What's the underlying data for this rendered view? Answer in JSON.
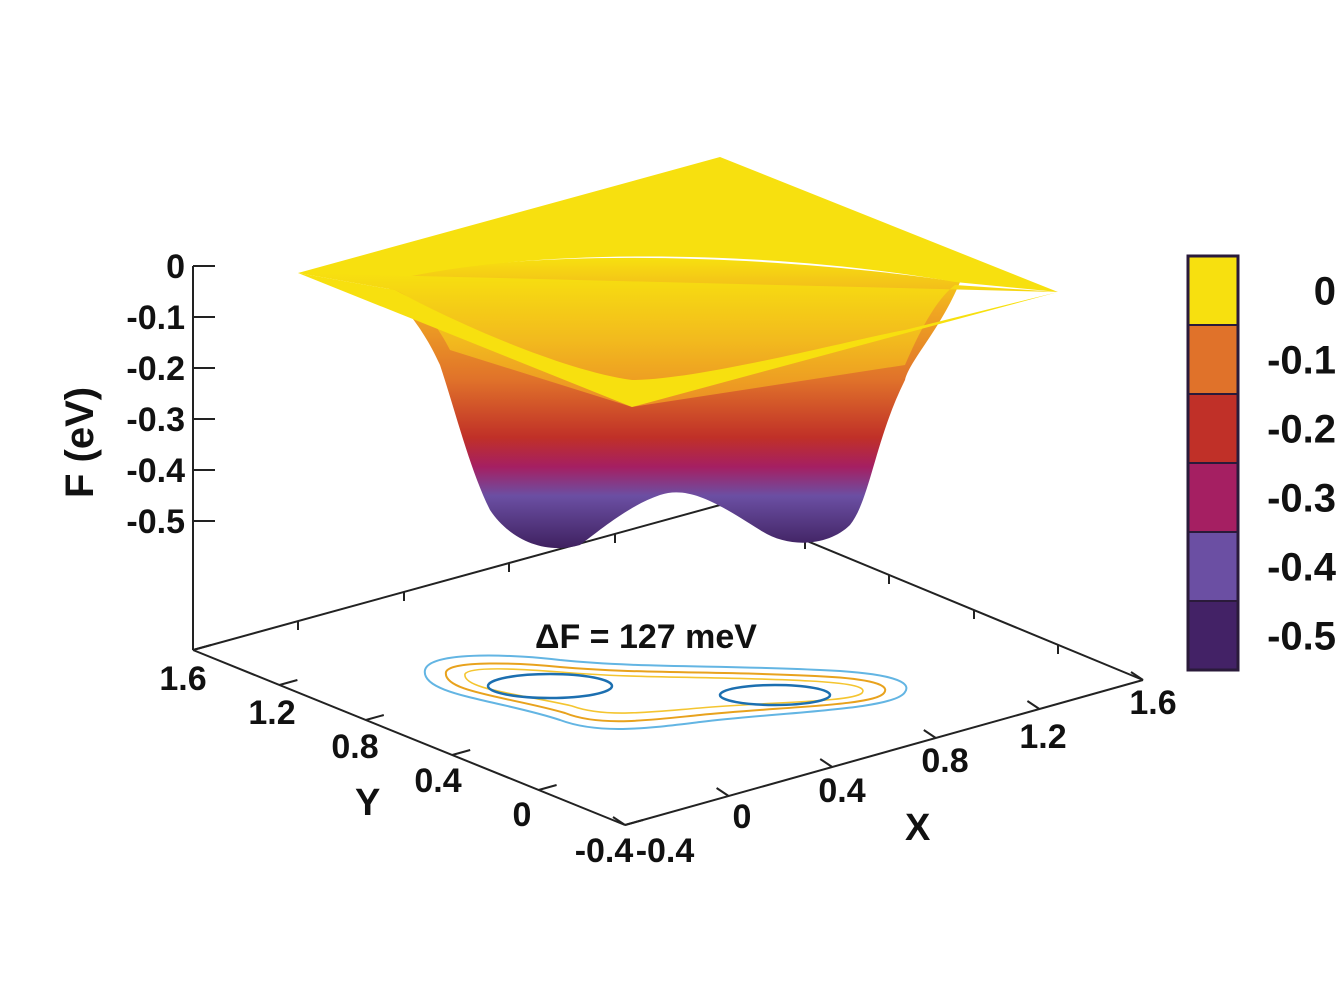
{
  "chart_data": {
    "type": "surface",
    "zlabel": "F (eV)",
    "xlabel": "X",
    "ylabel": "Y",
    "x_ticks": [
      "-0.4",
      "0",
      "0.4",
      "0.8",
      "1.2",
      "1.6"
    ],
    "y_ticks": [
      "-0.4",
      "0",
      "0.4",
      "0.8",
      "1.2",
      "1.6"
    ],
    "z_ticks": [
      "0",
      "-0.1",
      "-0.2",
      "-0.3",
      "-0.4",
      "-0.5"
    ],
    "xlim": [
      -0.4,
      1.6
    ],
    "ylim": [
      -0.4,
      1.6
    ],
    "zlim": [
      -0.5,
      0
    ],
    "minima_z": [
      -0.52,
      -0.52
    ],
    "barrier_z": -0.39,
    "annotation": "ΔF = 127 meV",
    "colorbar": {
      "labels": [
        "0",
        "-0.1",
        "-0.2",
        "-0.3",
        "-0.4",
        "-0.5"
      ],
      "colors": [
        "#f7e00f",
        "#e0722a",
        "#c03028",
        "#a51f62",
        "#6b4fa3",
        "#432266"
      ]
    },
    "contour_colors": [
      "#63b5e3",
      "#e8a21d",
      "#f4c530",
      "#1c6fb0"
    ]
  }
}
